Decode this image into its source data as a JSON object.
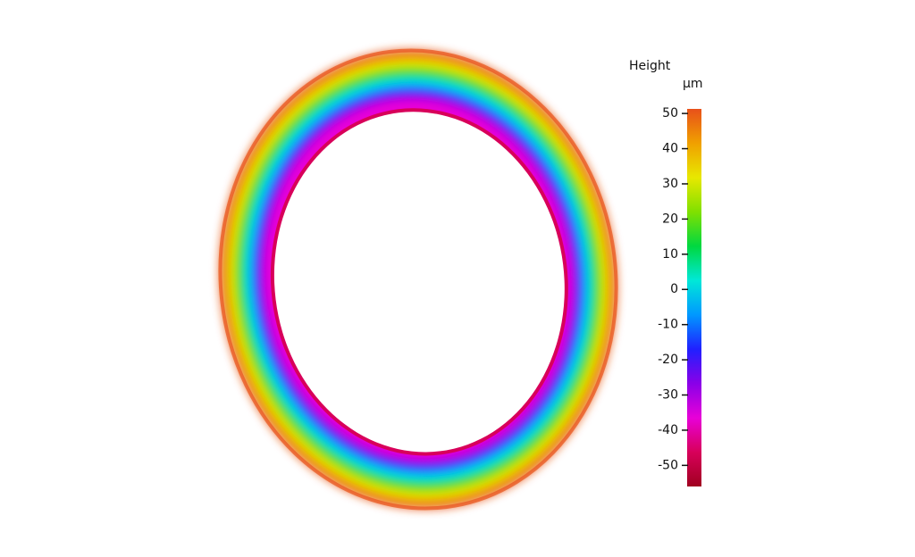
{
  "chart_data": {
    "type": "colorbar",
    "title": "Height",
    "unit": "µm",
    "ylim": [
      -56,
      51.3
    ],
    "yticks": [
      50,
      40,
      30,
      20,
      10,
      0,
      -10,
      -20,
      -30,
      -40,
      -50
    ],
    "colormap": [
      "#a00020",
      "#d8005a",
      "#e800d8",
      "#8a00e8",
      "#2020ff",
      "#0098ff",
      "#00e8d8",
      "#00d840",
      "#80e000",
      "#e8e800",
      "#f0a000",
      "#e8501a"
    ]
  }
}
